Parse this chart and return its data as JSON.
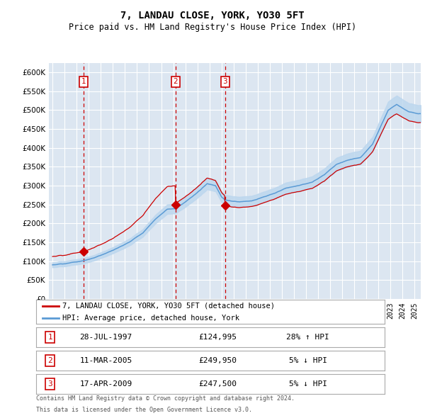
{
  "title": "7, LANDAU CLOSE, YORK, YO30 5FT",
  "subtitle": "Price paid vs. HM Land Registry's House Price Index (HPI)",
  "ylim": [
    0,
    625000
  ],
  "yticks": [
    0,
    50000,
    100000,
    150000,
    200000,
    250000,
    300000,
    350000,
    400000,
    450000,
    500000,
    550000,
    600000
  ],
  "xlim_start": 1994.7,
  "xlim_end": 2025.5,
  "legend_entries": [
    "7, LANDAU CLOSE, YORK, YO30 5FT (detached house)",
    "HPI: Average price, detached house, York"
  ],
  "transactions": [
    {
      "label": "1",
      "date": "28-JUL-1997",
      "price": 124995,
      "pct": "28%",
      "dir": "↑",
      "year": 1997.57
    },
    {
      "label": "2",
      "date": "11-MAR-2005",
      "price": 249950,
      "pct": "5%",
      "dir": "↓",
      "year": 2005.19
    },
    {
      "label": "3",
      "date": "17-APR-2009",
      "price": 247500,
      "pct": "5%",
      "dir": "↓",
      "year": 2009.29
    }
  ],
  "table_rows": [
    [
      "1",
      "28-JUL-1997",
      "£124,995",
      "28% ↑ HPI"
    ],
    [
      "2",
      "11-MAR-2005",
      "£249,950",
      "5% ↓ HPI"
    ],
    [
      "3",
      "17-APR-2009",
      "£247,500",
      "5% ↓ HPI"
    ]
  ],
  "footer_line1": "Contains HM Land Registry data © Crown copyright and database right 2024.",
  "footer_line2": "This data is licensed under the Open Government Licence v3.0.",
  "plot_bg_color": "#dce6f1",
  "fig_bg_color": "#ffffff",
  "sale_color": "#cc0000",
  "hpi_line_color": "#5b9bd5",
  "hpi_fill_color": "#bdd7ee",
  "grid_color": "#ffffff",
  "vline_color": "#cc0000",
  "label_box_color": "#cc0000",
  "title_fontsize": 10,
  "subtitle_fontsize": 8.5
}
